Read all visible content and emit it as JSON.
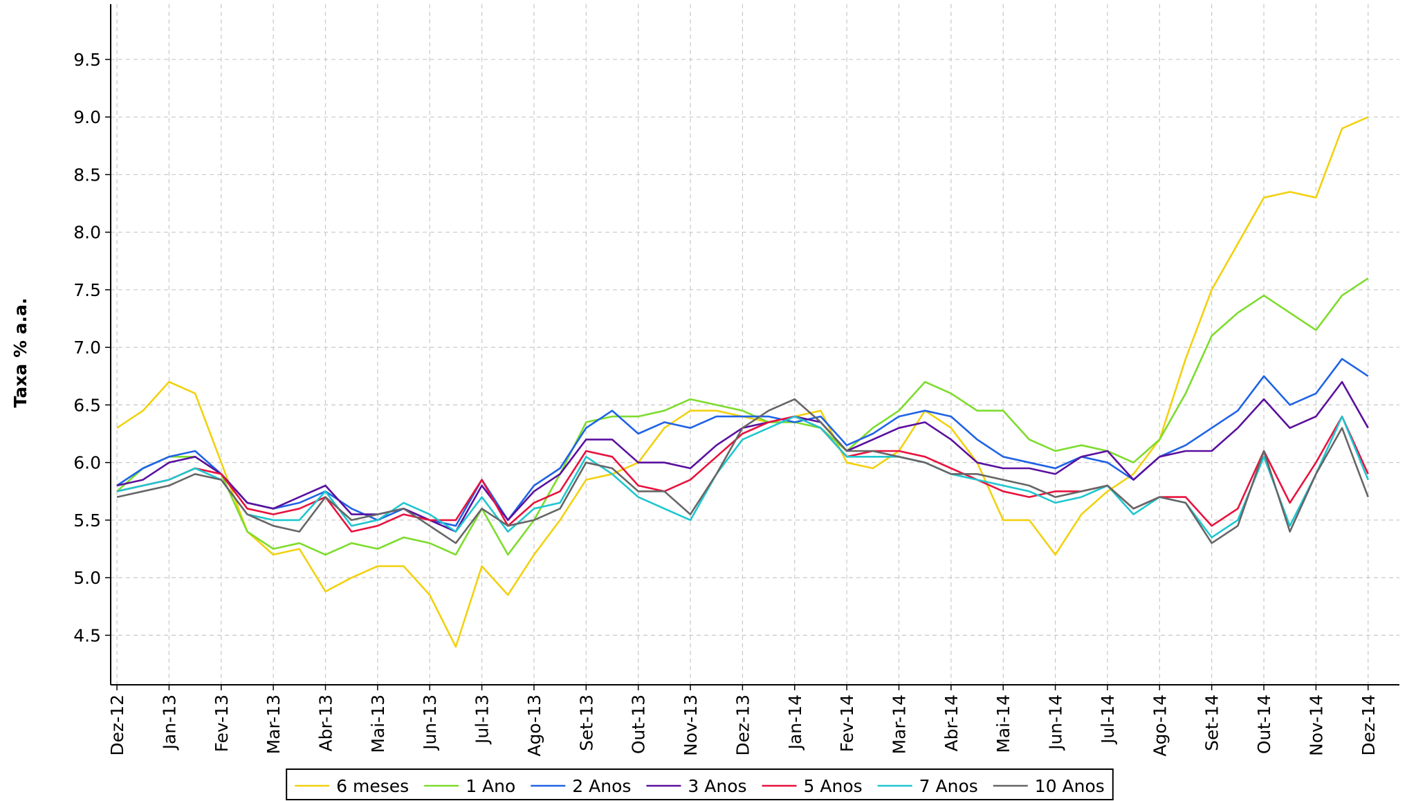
{
  "chart_data": {
    "type": "line",
    "y_label": "Taxa % a.a.",
    "x": [
      0,
      0.5,
      1,
      1.5,
      2,
      2.5,
      3,
      3.5,
      4,
      4.5,
      5,
      5.5,
      6,
      6.5,
      7,
      7.5,
      8,
      8.5,
      9,
      9.5,
      10,
      10.5,
      11,
      11.5,
      12,
      12.5,
      13,
      13.5,
      14,
      14.5,
      15,
      15.5,
      16,
      16.5,
      17,
      17.5,
      18,
      18.5,
      19,
      19.5,
      20,
      20.5,
      21,
      21.5,
      22,
      22.5,
      23,
      23.5,
      24
    ],
    "xlim": [
      -0.12,
      24.6
    ],
    "xticks": [
      {
        "value": 0,
        "label": "Dez-12"
      },
      {
        "value": 1,
        "label": "Jan-13"
      },
      {
        "value": 2,
        "label": "Fev-13"
      },
      {
        "value": 3,
        "label": "Mar-13"
      },
      {
        "value": 4,
        "label": "Abr-13"
      },
      {
        "value": 5,
        "label": "Mai-13"
      },
      {
        "value": 6,
        "label": "Jun-13"
      },
      {
        "value": 7,
        "label": "Jul-13"
      },
      {
        "value": 8,
        "label": "Ago-13"
      },
      {
        "value": 9,
        "label": "Set-13"
      },
      {
        "value": 10,
        "label": "Out-13"
      },
      {
        "value": 11,
        "label": "Nov-13"
      },
      {
        "value": 12,
        "label": "Dez-13"
      },
      {
        "value": 13,
        "label": "Jan-14"
      },
      {
        "value": 14,
        "label": "Fev-14"
      },
      {
        "value": 15,
        "label": "Mar-14"
      },
      {
        "value": 16,
        "label": "Abr-14"
      },
      {
        "value": 17,
        "label": "Mai-14"
      },
      {
        "value": 18,
        "label": "Jun-14"
      },
      {
        "value": 19,
        "label": "Jul-14"
      },
      {
        "value": 20,
        "label": "Ago-14"
      },
      {
        "value": 21,
        "label": "Set-14"
      },
      {
        "value": 22,
        "label": "Out-14"
      },
      {
        "value": 23,
        "label": "Nov-14"
      },
      {
        "value": 24,
        "label": "Dez-14"
      }
    ],
    "ylim": [
      4.07,
      9.98
    ],
    "yticks": [
      4.5,
      {
        "value": 5,
        "label": "5.0"
      },
      5.5,
      {
        "value": 6,
        "label": "6.0"
      },
      6.5,
      {
        "value": 7,
        "label": "7.0"
      },
      7.5,
      {
        "value": 8,
        "label": "8.0"
      },
      8.5,
      {
        "value": 9,
        "label": "9.0"
      },
      9.5
    ],
    "grid": true,
    "legend": "bottom",
    "series": [
      {
        "name": "6 meses",
        "color": "#f2d10f",
        "values": [
          6.3,
          6.45,
          6.7,
          6.6,
          6.0,
          5.4,
          5.2,
          5.25,
          4.88,
          5.0,
          5.1,
          5.1,
          4.85,
          4.4,
          5.1,
          4.85,
          5.2,
          5.5,
          5.85,
          5.9,
          6.0,
          6.3,
          6.45,
          6.45,
          6.4,
          6.35,
          6.4,
          6.45,
          6.0,
          5.95,
          6.1,
          6.45,
          6.3,
          6.0,
          5.5,
          5.5,
          5.2,
          5.55,
          5.75,
          5.9,
          6.2,
          6.9,
          7.5,
          7.9,
          8.3,
          8.35,
          8.3,
          8.9,
          9.0
        ]
      },
      {
        "name": "1 Ano",
        "color": "#7ddc2c",
        "values": [
          5.75,
          5.95,
          6.05,
          6.05,
          5.9,
          5.4,
          5.25,
          5.3,
          5.2,
          5.3,
          5.25,
          5.35,
          5.3,
          5.2,
          5.6,
          5.2,
          5.5,
          5.9,
          6.35,
          6.4,
          6.4,
          6.45,
          6.55,
          6.5,
          6.45,
          6.35,
          6.35,
          6.3,
          6.1,
          6.3,
          6.45,
          6.7,
          6.6,
          6.45,
          6.45,
          6.2,
          6.1,
          6.15,
          6.1,
          6.0,
          6.2,
          6.6,
          7.1,
          7.3,
          7.45,
          7.3,
          7.15,
          7.45,
          7.6
        ]
      },
      {
        "name": "2 Anos",
        "color": "#1f63e6",
        "values": [
          5.8,
          5.95,
          6.05,
          6.1,
          5.9,
          5.65,
          5.6,
          5.65,
          5.75,
          5.6,
          5.5,
          5.6,
          5.5,
          5.45,
          5.85,
          5.5,
          5.8,
          5.95,
          6.3,
          6.45,
          6.25,
          6.35,
          6.3,
          6.4,
          6.4,
          6.4,
          6.35,
          6.4,
          6.15,
          6.25,
          6.4,
          6.45,
          6.4,
          6.2,
          6.05,
          6.0,
          5.95,
          6.05,
          6.0,
          5.85,
          6.05,
          6.15,
          6.3,
          6.45,
          6.75,
          6.5,
          6.6,
          6.9,
          6.75
        ]
      },
      {
        "name": "3 Anos",
        "color": "#5a109e",
        "values": [
          5.8,
          5.85,
          6.0,
          6.05,
          5.9,
          5.65,
          5.6,
          5.7,
          5.8,
          5.55,
          5.55,
          5.6,
          5.5,
          5.4,
          5.8,
          5.5,
          5.75,
          5.9,
          6.2,
          6.2,
          6.0,
          6.0,
          5.95,
          6.15,
          6.3,
          6.35,
          6.4,
          6.35,
          6.1,
          6.2,
          6.3,
          6.35,
          6.2,
          6.0,
          5.95,
          5.95,
          5.9,
          6.05,
          6.1,
          5.85,
          6.05,
          6.1,
          6.1,
          6.3,
          6.55,
          6.3,
          6.4,
          6.7,
          6.3
        ]
      },
      {
        "name": "5 Anos",
        "color": "#e8123e",
        "values": [
          5.75,
          5.8,
          5.85,
          5.95,
          5.9,
          5.6,
          5.55,
          5.6,
          5.7,
          5.4,
          5.45,
          5.55,
          5.5,
          5.5,
          5.85,
          5.45,
          5.65,
          5.75,
          6.1,
          6.05,
          5.8,
          5.75,
          5.85,
          6.05,
          6.25,
          6.35,
          6.4,
          6.3,
          6.05,
          6.1,
          6.1,
          6.05,
          5.95,
          5.85,
          5.75,
          5.7,
          5.75,
          5.75,
          5.8,
          5.6,
          5.7,
          5.7,
          5.45,
          5.6,
          6.1,
          5.65,
          6.0,
          6.4,
          5.9
        ]
      },
      {
        "name": "7 Anos",
        "color": "#1fc6cf",
        "values": [
          5.75,
          5.8,
          5.85,
          5.95,
          5.85,
          5.55,
          5.5,
          5.5,
          5.75,
          5.45,
          5.5,
          5.65,
          5.55,
          5.4,
          5.7,
          5.4,
          5.6,
          5.65,
          6.05,
          5.9,
          5.7,
          5.6,
          5.5,
          5.9,
          6.2,
          6.3,
          6.4,
          6.3,
          6.05,
          6.05,
          6.05,
          6.0,
          5.9,
          5.85,
          5.8,
          5.75,
          5.65,
          5.7,
          5.8,
          5.55,
          5.7,
          5.65,
          5.35,
          5.5,
          6.05,
          5.45,
          5.9,
          6.4,
          5.85
        ]
      },
      {
        "name": "10 Anos",
        "color": "#666666",
        "values": [
          5.7,
          5.75,
          5.8,
          5.9,
          5.85,
          5.55,
          5.45,
          5.4,
          5.7,
          5.5,
          5.55,
          5.6,
          5.45,
          5.3,
          5.6,
          5.45,
          5.5,
          5.6,
          6.0,
          5.95,
          5.75,
          5.75,
          5.55,
          5.9,
          6.3,
          6.45,
          6.55,
          6.35,
          6.1,
          6.1,
          6.05,
          6.0,
          5.9,
          5.9,
          5.85,
          5.8,
          5.7,
          5.75,
          5.8,
          5.6,
          5.7,
          5.65,
          5.3,
          5.45,
          6.1,
          5.4,
          5.9,
          6.3,
          5.7
        ]
      }
    ]
  }
}
